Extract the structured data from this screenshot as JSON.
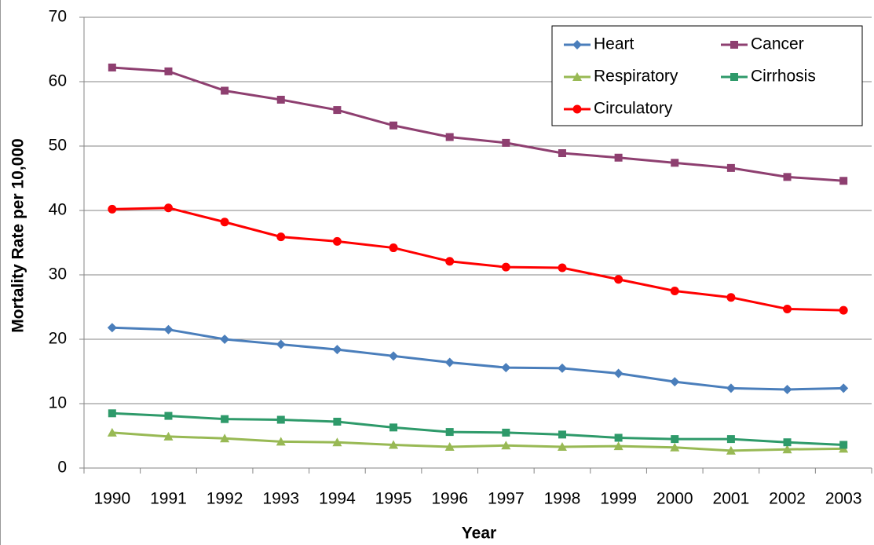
{
  "chart_data": {
    "type": "line",
    "x_label": "Year",
    "y_label": "Mortality Rate per 10,000",
    "categories": [
      "1990",
      "1991",
      "1992",
      "1993",
      "1994",
      "1995",
      "1996",
      "1997",
      "1998",
      "1999",
      "2000",
      "2001",
      "2002",
      "2003"
    ],
    "ylim": [
      0,
      70
    ],
    "yticks": [
      0,
      10,
      20,
      30,
      40,
      50,
      60,
      70
    ],
    "grid": true,
    "legend": "upper right",
    "series": [
      {
        "name": "Heart",
        "color": "#4a7ebb",
        "marker": "diamond",
        "values": [
          21.8,
          21.5,
          20.0,
          19.2,
          18.4,
          17.4,
          16.4,
          15.6,
          15.5,
          14.7,
          13.4,
          12.4,
          12.2,
          12.4
        ]
      },
      {
        "name": "Cancer",
        "color": "#8e3f70",
        "marker": "square",
        "values": [
          62.2,
          61.6,
          58.6,
          57.2,
          55.6,
          53.2,
          51.4,
          50.5,
          48.9,
          48.2,
          47.4,
          46.6,
          45.2,
          44.6
        ]
      },
      {
        "name": "Respiratory",
        "color": "#98b954",
        "marker": "triangle",
        "values": [
          5.5,
          4.9,
          4.6,
          4.1,
          4.0,
          3.6,
          3.3,
          3.5,
          3.3,
          3.4,
          3.2,
          2.7,
          2.9,
          3.0
        ]
      },
      {
        "name": "Cirrhosis",
        "color": "#2e9a6a",
        "marker": "square",
        "values": [
          8.5,
          8.1,
          7.6,
          7.5,
          7.2,
          6.3,
          5.6,
          5.5,
          5.2,
          4.7,
          4.5,
          4.5,
          4.0,
          3.6
        ]
      },
      {
        "name": "Circulatory",
        "color": "#ff0000",
        "marker": "circle",
        "values": [
          40.2,
          40.4,
          38.2,
          35.9,
          35.2,
          34.2,
          32.1,
          31.2,
          31.1,
          29.3,
          27.5,
          26.5,
          24.7,
          24.5
        ]
      }
    ]
  }
}
